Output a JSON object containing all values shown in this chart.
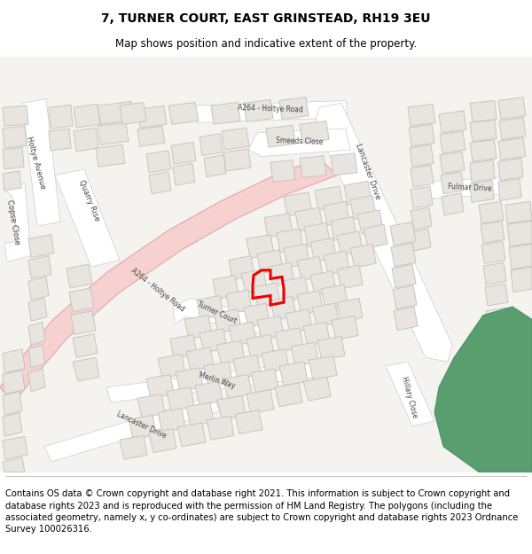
{
  "title": "7, TURNER COURT, EAST GRINSTEAD, RH19 3EU",
  "subtitle": "Map shows position and indicative extent of the property.",
  "copyright_text": "Contains OS data © Crown copyright and database right 2021. This information is subject to Crown copyright and database rights 2023 and is reproduced with the permission of HM Land Registry. The polygons (including the associated geometry, namely x, y co-ordinates) are subject to Crown copyright and database rights 2023 Ordnance Survey 100026316.",
  "map_bg": "#f5f3f0",
  "road_fill": "#ffffff",
  "road_stroke": "#cccccc",
  "main_road_fill": "#f7d0d0",
  "main_road_stroke": "#e8b0b0",
  "building_fill": "#e8e4e0",
  "building_stroke": "#c8c4c0",
  "green_fill": "#5a9e6f",
  "green_stroke": "#4a8e5f",
  "highlight_stroke": "#ee0000",
  "title_fontsize": 10,
  "subtitle_fontsize": 8.5,
  "copyright_fontsize": 7.2,
  "label_color": "#444444",
  "label_fontsize": 6.0
}
